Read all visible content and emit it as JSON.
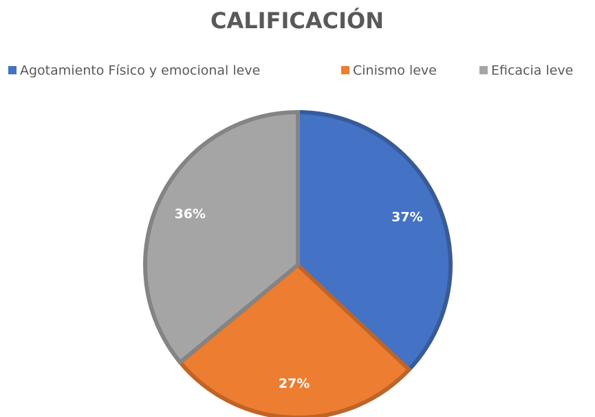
{
  "chart_data": {
    "type": "pie",
    "title": "CALIFICACIÓN",
    "categories": [
      "Agotamiento Físico y emocional leve",
      "Cinismo leve",
      "Eficacia leve"
    ],
    "values": [
      37,
      27,
      36
    ],
    "value_labels": [
      "37%",
      "27%",
      "36%"
    ],
    "colors": [
      "#4472c4",
      "#ed7d31",
      "#a5a5a5"
    ],
    "legend": "top"
  }
}
